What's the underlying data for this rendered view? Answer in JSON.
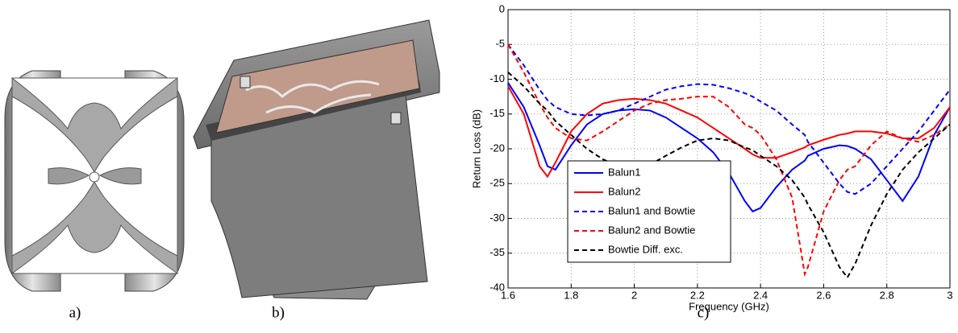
{
  "panel_labels": [
    "a)",
    "b)",
    "c)"
  ],
  "chart_data": {
    "type": "line",
    "xlabel": "Frequency (GHz)",
    "ylabel": "Return Loss (dB)",
    "xlim": [
      1.6,
      3
    ],
    "ylim": [
      -40,
      0
    ],
    "xticks": [
      1.6,
      1.8,
      2,
      2.2,
      2.4,
      2.6,
      2.8,
      3
    ],
    "yticks": [
      -40,
      -35,
      -30,
      -25,
      -20,
      -15,
      -10,
      -5,
      0
    ],
    "grid": true,
    "legend": "lower left",
    "x": [
      1.6,
      1.65,
      1.7,
      1.725,
      1.75,
      1.8,
      1.85,
      1.9,
      1.95,
      2.0,
      2.05,
      2.1,
      2.15,
      2.2,
      2.25,
      2.3,
      2.35,
      2.375,
      2.4,
      2.45,
      2.5,
      2.54,
      2.55,
      2.6,
      2.65,
      2.675,
      2.7,
      2.75,
      2.8,
      2.85,
      2.9,
      2.95,
      3.0
    ],
    "series": [
      {
        "name": "Balun1",
        "color": "#0000ff",
        "linestyle": "solid",
        "values": [
          -10.5,
          -14,
          -19.5,
          -22.5,
          -23,
          -19.5,
          -16.5,
          -15,
          -14.5,
          -14.3,
          -14.5,
          -15.5,
          -17,
          -18.5,
          -20.5,
          -23.5,
          -27.5,
          -29,
          -28.5,
          -25.5,
          -23,
          -21.7,
          -21,
          -20,
          -19.5,
          -19.6,
          -20,
          -21.5,
          -24.5,
          -27.5,
          -24,
          -18,
          -14
        ]
      },
      {
        "name": "Balun2",
        "color": "#ff0000",
        "linestyle": "solid",
        "values": [
          -11,
          -15,
          -22.5,
          -24,
          -22,
          -17.5,
          -15,
          -13.5,
          -13,
          -12.8,
          -13,
          -13.5,
          -14.5,
          -15.5,
          -17,
          -18.5,
          -20,
          -20.8,
          -21.3,
          -21.3,
          -20.5,
          -19.8,
          -19.5,
          -18.7,
          -18,
          -17.8,
          -17.5,
          -17.5,
          -17.8,
          -18.5,
          -18.5,
          -17,
          -14
        ]
      },
      {
        "name": "Balun1 and Bowtie",
        "color": "#0000ff",
        "linestyle": "dashed",
        "values": [
          -5,
          -8,
          -11.5,
          -13,
          -14,
          -15,
          -15.2,
          -15,
          -14.5,
          -13.5,
          -12.5,
          -11.5,
          -11,
          -10.7,
          -10.8,
          -11.3,
          -12,
          -12.5,
          -13.2,
          -14.5,
          -16.5,
          -18,
          -19,
          -22,
          -25,
          -26.2,
          -26.5,
          -25,
          -22.5,
          -20,
          -17.5,
          -14.5,
          -11.5
        ]
      },
      {
        "name": "Balun2 and Bowtie",
        "color": "#ff0000",
        "linestyle": "dashed",
        "values": [
          -5,
          -9,
          -13.5,
          -15.5,
          -17,
          -18.5,
          -18.8,
          -17.5,
          -16,
          -14.5,
          -13.5,
          -13,
          -12.8,
          -12.5,
          -12.5,
          -14,
          -16.5,
          -17,
          -18,
          -21.5,
          -27,
          -38,
          -37,
          -29,
          -24.5,
          -23,
          -22.5,
          -19.5,
          -17.5,
          -18.5,
          -19,
          -18,
          -16.5
        ]
      },
      {
        "name": "Bowtie Diff. exc.",
        "color": "#000000",
        "linestyle": "dashed",
        "values": [
          -9,
          -11,
          -13.5,
          -14.5,
          -16,
          -18,
          -20,
          -21.5,
          -22.5,
          -22.7,
          -22.3,
          -21,
          -19.8,
          -18.8,
          -18.5,
          -18.8,
          -19.8,
          -20.2,
          -21,
          -22.5,
          -24.5,
          -27,
          -28,
          -32,
          -37,
          -38.5,
          -36.5,
          -31,
          -26.5,
          -23,
          -20.5,
          -18.5,
          -16.5
        ]
      }
    ]
  }
}
